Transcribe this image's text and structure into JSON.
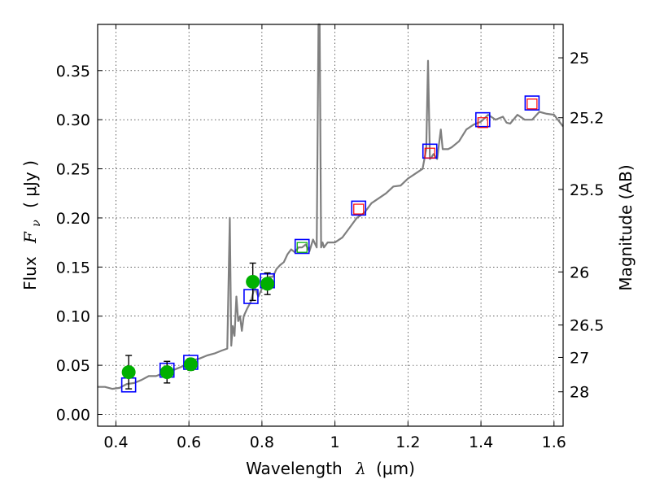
{
  "chart_data": {
    "type": "scatter",
    "title": "",
    "xlabel": "Wavelength",
    "xlabel_symbol": "λ",
    "xlabel_unit": "(μm)",
    "ylabel": "Flux",
    "ylabel_symbol": "F",
    "ylabel_symbol_sub": "ν",
    "ylabel_unit": "( μJy )",
    "y2label": "Magnitude (AB)",
    "xlim": [
      0.35,
      1.625
    ],
    "ylim": [
      -0.012,
      0.397
    ],
    "grid": true,
    "x_ticks": [
      0.4,
      0.6,
      0.8,
      1.0,
      1.2,
      1.4,
      1.6
    ],
    "x_tick_labels": [
      "0.4",
      "0.6",
      "0.8",
      "1",
      "1.2",
      "1.4",
      "1.6"
    ],
    "y_ticks": [
      0.0,
      0.05,
      0.1,
      0.15,
      0.2,
      0.25,
      0.3,
      0.35
    ],
    "y_tick_labels": [
      "0.00",
      "0.05",
      "0.10",
      "0.15",
      "0.20",
      "0.25",
      "0.30",
      "0.35"
    ],
    "y2_ticks": [
      {
        "label": "25",
        "flux": 0.363
      },
      {
        "label": "25.2",
        "flux": 0.302
      },
      {
        "label": "25.5",
        "flux": 0.229
      },
      {
        "label": "26",
        "flux": 0.145
      },
      {
        "label": "26.5",
        "flux": 0.091
      },
      {
        "label": "27",
        "flux": 0.058
      },
      {
        "label": "28",
        "flux": 0.023
      }
    ],
    "series": [
      {
        "name": "model spectrum",
        "kind": "line",
        "color": "#7f7f7f",
        "x": [
          0.35,
          0.37,
          0.39,
          0.41,
          0.43,
          0.45,
          0.47,
          0.49,
          0.51,
          0.53,
          0.55,
          0.57,
          0.59,
          0.61,
          0.63,
          0.65,
          0.67,
          0.69,
          0.705,
          0.712,
          0.716,
          0.72,
          0.725,
          0.73,
          0.735,
          0.74,
          0.745,
          0.75,
          0.76,
          0.77,
          0.78,
          0.79,
          0.8,
          0.81,
          0.82,
          0.83,
          0.84,
          0.85,
          0.86,
          0.87,
          0.88,
          0.89,
          0.9,
          0.91,
          0.92,
          0.93,
          0.94,
          0.95,
          0.955,
          0.958,
          0.962,
          0.966,
          0.97,
          0.98,
          0.99,
          1.0,
          1.02,
          1.04,
          1.06,
          1.08,
          1.1,
          1.12,
          1.14,
          1.16,
          1.18,
          1.2,
          1.22,
          1.24,
          1.25,
          1.255,
          1.26,
          1.265,
          1.27,
          1.28,
          1.29,
          1.295,
          1.3,
          1.31,
          1.32,
          1.34,
          1.36,
          1.38,
          1.4,
          1.42,
          1.44,
          1.46,
          1.47,
          1.48,
          1.5,
          1.52,
          1.54,
          1.56,
          1.58,
          1.6,
          1.625
        ],
        "y": [
          0.028,
          0.028,
          0.026,
          0.027,
          0.031,
          0.032,
          0.035,
          0.039,
          0.039,
          0.042,
          0.044,
          0.047,
          0.05,
          0.055,
          0.057,
          0.06,
          0.062,
          0.065,
          0.067,
          0.2,
          0.07,
          0.09,
          0.08,
          0.12,
          0.095,
          0.1,
          0.085,
          0.1,
          0.108,
          0.115,
          0.13,
          0.12,
          0.128,
          0.135,
          0.14,
          0.14,
          0.148,
          0.152,
          0.155,
          0.163,
          0.168,
          0.165,
          0.17,
          0.17,
          0.173,
          0.166,
          0.178,
          0.17,
          0.4,
          0.4,
          0.17,
          0.175,
          0.17,
          0.175,
          0.175,
          0.175,
          0.18,
          0.19,
          0.2,
          0.205,
          0.215,
          0.22,
          0.225,
          0.232,
          0.233,
          0.24,
          0.245,
          0.25,
          0.27,
          0.36,
          0.26,
          0.262,
          0.265,
          0.26,
          0.29,
          0.27,
          0.27,
          0.27,
          0.272,
          0.278,
          0.29,
          0.295,
          0.298,
          0.305,
          0.3,
          0.303,
          0.297,
          0.296,
          0.305,
          0.3,
          0.3,
          0.308,
          0.306,
          0.305,
          0.293
        ]
      },
      {
        "name": "observed photometry",
        "kind": "points_with_errors",
        "color": "#00b000",
        "x": [
          0.435,
          0.54,
          0.605,
          0.775,
          0.815
        ],
        "y": [
          0.043,
          0.043,
          0.051,
          0.135,
          0.133
        ],
        "yerr": [
          0.017,
          0.011,
          0.006,
          0.019,
          0.011
        ]
      },
      {
        "name": "model synthetic photometry (blue squares)",
        "kind": "markers",
        "color": "#0000ff",
        "x": [
          0.435,
          0.54,
          0.605,
          0.77,
          0.815,
          0.91,
          1.065,
          1.26,
          1.405,
          1.54
        ],
        "y": [
          0.03,
          0.045,
          0.053,
          0.12,
          0.136,
          0.171,
          0.21,
          0.268,
          0.3,
          0.317
        ]
      },
      {
        "name": "model values (inner squares)",
        "kind": "markers",
        "x": [
          0.91,
          1.065,
          1.26,
          1.405,
          1.54
        ],
        "y": [
          0.17,
          0.209,
          0.266,
          0.297,
          0.316
        ],
        "colors": [
          "#00b000",
          "#ff0000",
          "#ff0000",
          "#ff0000",
          "#ff0000"
        ]
      }
    ]
  }
}
